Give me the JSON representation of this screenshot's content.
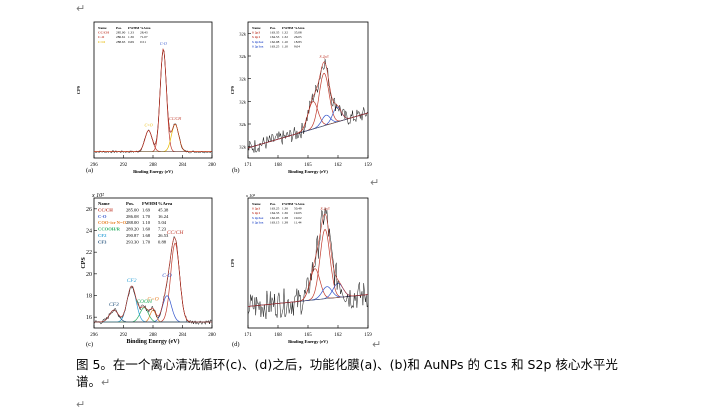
{
  "para_mark": "↵",
  "caption": "图 5。在一个离心清洗循环(c)、(d)之后，功能化膜(a)、(b)和 AuNPs 的 C1s 和 S2p 核心水平光谱。",
  "chart_data": [
    {
      "id": "a",
      "type": "line",
      "label": "(a)",
      "xlabel": "Binding Energy (eV)",
      "ylabel": "CPS",
      "xlim": [
        296,
        280
      ],
      "xticks": [
        "296",
        "292",
        "288",
        "284",
        "280"
      ],
      "legend_header": [
        "Name",
        "Pos.",
        "FWHM",
        "%Area"
      ],
      "legend": [
        {
          "name": "CC/CH",
          "pos": "285.00",
          "fwhm": "1.33",
          "area": "28.43",
          "color": "#c0392b"
        },
        {
          "name": "C-O",
          "pos": "286.61",
          "fwhm": "1.36",
          "area": "71.07",
          "color": "#c0392b"
        },
        {
          "name": "C=O",
          "pos": "288.63",
          "fwhm": "0.69",
          "area": "0.51",
          "color": "#e6b800"
        }
      ],
      "peak_labels": [
        {
          "text": "C=O",
          "x": 288.6,
          "color": "#e6b800"
        },
        {
          "text": "C-O",
          "x": 286.6,
          "color": "#3355cc"
        },
        {
          "text": "CC/CH",
          "x": 285.0,
          "color": "#c0392b"
        }
      ]
    },
    {
      "id": "b",
      "type": "line",
      "label": "(b)",
      "xlabel": "Binding Energy (eV)",
      "ylabel": "CPS",
      "xlim": [
        171,
        159
      ],
      "xticks": [
        "171",
        "168",
        "165",
        "162",
        "159"
      ],
      "yticks": [
        "32k",
        "32k",
        "32k",
        "32k",
        "32k",
        "32k"
      ],
      "legend_header": [
        "Name",
        "Pos.",
        "FWHM",
        "%Area"
      ],
      "legend": [
        {
          "name": "S 2p3",
          "pos": "163.35",
          "fwhm": "1.32",
          "area": "35.08",
          "color": "#c0392b"
        },
        {
          "name": "S 2p1",
          "pos": "164.53",
          "fwhm": "1.32",
          "area": "26.05",
          "color": "#c0392b"
        },
        {
          "name": "S 2p3ox",
          "pos": "162.08",
          "fwhm": "1.10",
          "area": "18.83",
          "color": "#3355cc"
        },
        {
          "name": "S 2p1ox",
          "pos": "163.25",
          "fwhm": "1.10",
          "area": "9.04",
          "color": "#3355cc"
        }
      ],
      "peak_labels": [
        {
          "text": "S 2p3",
          "x": 163.4,
          "color": "#c0392b"
        }
      ]
    },
    {
      "id": "c",
      "type": "line",
      "label": "(c)",
      "multiplier": "x 10²",
      "xlabel": "Binding Energy (eV)",
      "ylabel": "CPS",
      "xlim": [
        296,
        280
      ],
      "xticks": [
        "296",
        "292",
        "288",
        "284",
        "280"
      ],
      "ylim": [
        15,
        27
      ],
      "yticks": [
        "16",
        "18",
        "20",
        "22",
        "24",
        "26"
      ],
      "legend_header": [
        "Name",
        "Pos.",
        "FWHM",
        "%Area"
      ],
      "legend": [
        {
          "name": "CC/CH",
          "pos": "285.00",
          "fwhm": "1.69",
          "area": "45.38",
          "color": "#c0392b"
        },
        {
          "name": "C-O",
          "pos": "286.08",
          "fwhm": "1.70",
          "area": "16.24",
          "color": "#3355cc"
        },
        {
          "name": "COO-/or N=O",
          "pos": "288.00",
          "fwhm": "1.10",
          "area": "5.04",
          "color": "#e67e22"
        },
        {
          "name": "CCOOH/R",
          "pos": "289.20",
          "fwhm": "1.60",
          "area": "7.23",
          "color": "#27ae60"
        },
        {
          "name": "CF2",
          "pos": "290.87",
          "fwhm": "1.68",
          "area": "26.53",
          "color": "#2a9fd6"
        },
        {
          "name": "CF3",
          "pos": "293.30",
          "fwhm": "1.70",
          "area": "0.88",
          "color": "#1f4e79"
        }
      ],
      "peak_labels": [
        {
          "text": "CF3",
          "x": 293.3,
          "color": "#1f4e79"
        },
        {
          "text": "CF2",
          "x": 290.9,
          "color": "#2a9fd6"
        },
        {
          "text": "COOH",
          "x": 289.2,
          "color": "#27ae60"
        },
        {
          "text": "C=O",
          "x": 288.0,
          "color": "#e67e22"
        },
        {
          "text": "C-O",
          "x": 286.1,
          "color": "#3355cc"
        },
        {
          "text": "CC/CH",
          "x": 285.0,
          "color": "#c0392b"
        }
      ]
    },
    {
      "id": "d",
      "type": "line",
      "label": "(d)",
      "multiplier": "x 10²",
      "xlabel": "Binding Energy (eV)",
      "ylabel": "CPS",
      "xlim": [
        171,
        159
      ],
      "xticks": [
        "171",
        "168",
        "165",
        "162",
        "159"
      ],
      "legend_header": [
        "Name",
        "Pos.",
        "FWHM",
        "%Area"
      ],
      "legend": [
        {
          "name": "S 2p3",
          "pos": "163.25",
          "fwhm": "1.36",
          "area": "50.49",
          "color": "#c0392b"
        },
        {
          "name": "S 2p1",
          "pos": "164.33",
          "fwhm": "1.36",
          "area": "19.05",
          "color": "#c0392b"
        },
        {
          "name": "S 2p3ox",
          "pos": "162.05",
          "fwhm": "1.38",
          "area": "19.02",
          "color": "#3355cc"
        },
        {
          "name": "S 2p1ox",
          "pos": "163.15",
          "fwhm": "1.38",
          "area": "11.44",
          "color": "#3355cc"
        }
      ],
      "peak_labels": [
        {
          "text": "S 2p3",
          "x": 163.3,
          "color": "#c0392b"
        }
      ]
    }
  ]
}
